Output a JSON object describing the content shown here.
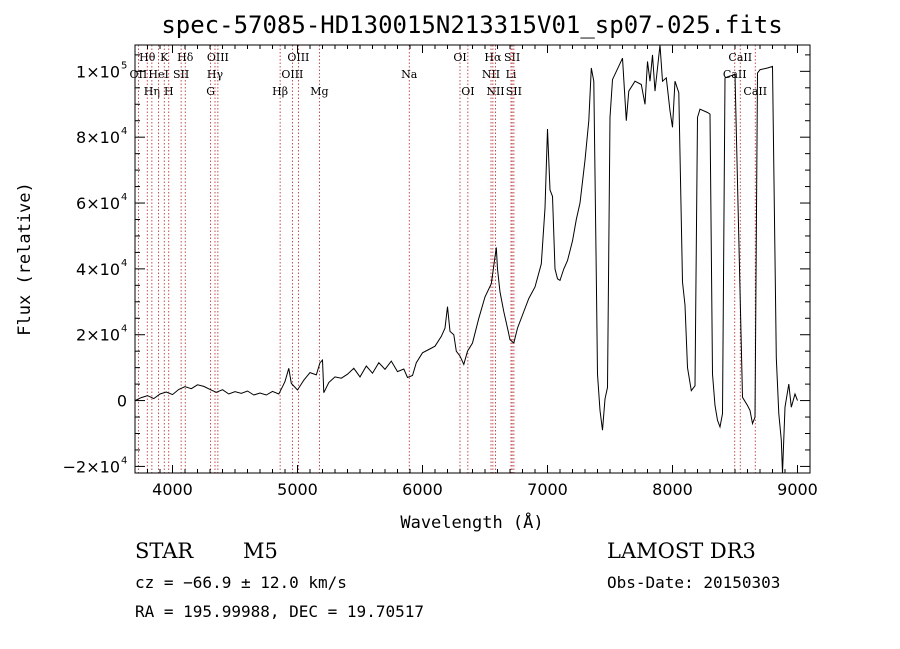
{
  "chart_data": {
    "type": "line",
    "title": "spec-57085-HD130015N213315V01_sp07-025.fits",
    "xlabel": "Wavelength (Å)",
    "ylabel": "Flux (relative)",
    "xlim": [
      3700,
      9100
    ],
    "ylim": [
      -22000,
      108000
    ],
    "x_ticks": [
      4000,
      5000,
      6000,
      7000,
      8000,
      9000
    ],
    "y_ticks": [
      {
        "value": -20000,
        "mantissa": "−2×10",
        "exp": "4"
      },
      {
        "value": 0,
        "mantissa": "0",
        "exp": ""
      },
      {
        "value": 20000,
        "mantissa": "2×10",
        "exp": "4"
      },
      {
        "value": 40000,
        "mantissa": "4×10",
        "exp": "4"
      },
      {
        "value": 60000,
        "mantissa": "6×10",
        "exp": "4"
      },
      {
        "value": 80000,
        "mantissa": "8×10",
        "exp": "4"
      },
      {
        "value": 100000,
        "mantissa": "1×10",
        "exp": "5"
      }
    ],
    "series": [
      {
        "points": [
          [
            3700,
            0
          ],
          [
            3750,
            900
          ],
          [
            3800,
            1500
          ],
          [
            3850,
            600
          ],
          [
            3900,
            2000
          ],
          [
            3950,
            2600
          ],
          [
            4000,
            1800
          ],
          [
            4050,
            3400
          ],
          [
            4100,
            4200
          ],
          [
            4150,
            3600
          ],
          [
            4200,
            4800
          ],
          [
            4250,
            4300
          ],
          [
            4300,
            3400
          ],
          [
            4350,
            2500
          ],
          [
            4400,
            3300
          ],
          [
            4450,
            2000
          ],
          [
            4500,
            2700
          ],
          [
            4550,
            2200
          ],
          [
            4600,
            2900
          ],
          [
            4650,
            1700
          ],
          [
            4700,
            2300
          ],
          [
            4750,
            1700
          ],
          [
            4800,
            2800
          ],
          [
            4850,
            2000
          ],
          [
            4880,
            4200
          ],
          [
            4900,
            5800
          ],
          [
            4930,
            9800
          ],
          [
            4950,
            5200
          ],
          [
            5000,
            3200
          ],
          [
            5050,
            6200
          ],
          [
            5100,
            8500
          ],
          [
            5150,
            7800
          ],
          [
            5180,
            11500
          ],
          [
            5200,
            12300
          ],
          [
            5210,
            2400
          ],
          [
            5250,
            5500
          ],
          [
            5300,
            7200
          ],
          [
            5350,
            6800
          ],
          [
            5400,
            8000
          ],
          [
            5450,
            9800
          ],
          [
            5500,
            7200
          ],
          [
            5550,
            10500
          ],
          [
            5600,
            8300
          ],
          [
            5650,
            11500
          ],
          [
            5700,
            9500
          ],
          [
            5750,
            12000
          ],
          [
            5800,
            8800
          ],
          [
            5850,
            9600
          ],
          [
            5880,
            7000
          ],
          [
            5920,
            7600
          ],
          [
            5950,
            11500
          ],
          [
            6000,
            14500
          ],
          [
            6050,
            15500
          ],
          [
            6100,
            16500
          ],
          [
            6150,
            19500
          ],
          [
            6180,
            22000
          ],
          [
            6200,
            28500
          ],
          [
            6220,
            21000
          ],
          [
            6250,
            20000
          ],
          [
            6270,
            15000
          ],
          [
            6300,
            13500
          ],
          [
            6330,
            11000
          ],
          [
            6360,
            15000
          ],
          [
            6400,
            17500
          ],
          [
            6450,
            25000
          ],
          [
            6500,
            31500
          ],
          [
            6550,
            35500
          ],
          [
            6570,
            41000
          ],
          [
            6590,
            46500
          ],
          [
            6600,
            40000
          ],
          [
            6620,
            33000
          ],
          [
            6650,
            27000
          ],
          [
            6680,
            22000
          ],
          [
            6700,
            18500
          ],
          [
            6730,
            17500
          ],
          [
            6760,
            22000
          ],
          [
            6800,
            26000
          ],
          [
            6850,
            31000
          ],
          [
            6900,
            34500
          ],
          [
            6950,
            41500
          ],
          [
            6980,
            58500
          ],
          [
            7000,
            82500
          ],
          [
            7020,
            64000
          ],
          [
            7040,
            62000
          ],
          [
            7060,
            40000
          ],
          [
            7080,
            37000
          ],
          [
            7100,
            36500
          ],
          [
            7130,
            40000
          ],
          [
            7160,
            42500
          ],
          [
            7200,
            48500
          ],
          [
            7230,
            55000
          ],
          [
            7260,
            60000
          ],
          [
            7300,
            73000
          ],
          [
            7330,
            85000
          ],
          [
            7350,
            101000
          ],
          [
            7370,
            97000
          ],
          [
            7390,
            38000
          ],
          [
            7400,
            8000
          ],
          [
            7420,
            -3000
          ],
          [
            7440,
            -9000
          ],
          [
            7460,
            500
          ],
          [
            7480,
            4000
          ],
          [
            7500,
            86000
          ],
          [
            7520,
            97500
          ],
          [
            7600,
            104000
          ],
          [
            7630,
            85000
          ],
          [
            7650,
            94000
          ],
          [
            7700,
            97000
          ],
          [
            7750,
            96000
          ],
          [
            7780,
            90000
          ],
          [
            7800,
            103000
          ],
          [
            7820,
            97000
          ],
          [
            7840,
            105000
          ],
          [
            7860,
            94000
          ],
          [
            7880,
            101000
          ],
          [
            7900,
            108000
          ],
          [
            7920,
            97000
          ],
          [
            7950,
            98000
          ],
          [
            7980,
            88000
          ],
          [
            8000,
            83000
          ],
          [
            8020,
            97000
          ],
          [
            8050,
            93500
          ],
          [
            8080,
            36000
          ],
          [
            8100,
            29000
          ],
          [
            8120,
            10000
          ],
          [
            8150,
            3000
          ],
          [
            8180,
            4500
          ],
          [
            8200,
            86000
          ],
          [
            8220,
            88500
          ],
          [
            8280,
            87500
          ],
          [
            8300,
            87000
          ],
          [
            8320,
            8000
          ],
          [
            8340,
            -1500
          ],
          [
            8360,
            -6000
          ],
          [
            8380,
            -8000
          ],
          [
            8400,
            -4000
          ],
          [
            8420,
            98000
          ],
          [
            8450,
            98500
          ],
          [
            8500,
            99000
          ],
          [
            8560,
            1000
          ],
          [
            8600,
            -1500
          ],
          [
            8620,
            -3000
          ],
          [
            8640,
            -7000
          ],
          [
            8660,
            -5000
          ],
          [
            8680,
            99500
          ],
          [
            8700,
            100500
          ],
          [
            8760,
            101000
          ],
          [
            8800,
            101500
          ],
          [
            8830,
            13000
          ],
          [
            8850,
            -4000
          ],
          [
            8870,
            -12000
          ],
          [
            8880,
            -22000
          ],
          [
            8900,
            -2000
          ],
          [
            8930,
            5000
          ],
          [
            8950,
            -2000
          ],
          [
            8980,
            2000
          ],
          [
            9000,
            0
          ]
        ]
      }
    ],
    "line_markers": [
      {
        "label": "Hθ",
        "wl": 3798,
        "row": 1
      },
      {
        "label": "OII",
        "wl": 3727,
        "row": 2
      },
      {
        "label": "Hη",
        "wl": 3835,
        "row": 3
      },
      {
        "label": "K",
        "wl": 3934,
        "row": 1
      },
      {
        "label": "HeI",
        "wl": 3889,
        "row": 2
      },
      {
        "label": "H",
        "wl": 3970,
        "row": 3
      },
      {
        "label": "Hδ",
        "wl": 4102,
        "row": 1
      },
      {
        "label": "SII",
        "wl": 4069,
        "row": 2
      },
      {
        "label": "OIII",
        "wl": 4363,
        "row": 1
      },
      {
        "label": "Hγ",
        "wl": 4340,
        "row": 2
      },
      {
        "label": "G",
        "wl": 4305,
        "row": 3
      },
      {
        "label": "Hβ",
        "wl": 4861,
        "row": 3
      },
      {
        "label": "OIII",
        "wl": 5007,
        "row": 1
      },
      {
        "label": "OIII",
        "wl": 4959,
        "row": 2
      },
      {
        "label": "Mg",
        "wl": 5175,
        "row": 3
      },
      {
        "label": "Na",
        "wl": 5894,
        "row": 2
      },
      {
        "label": "OI",
        "wl": 6300,
        "row": 1
      },
      {
        "label": "OI",
        "wl": 6363,
        "row": 3
      },
      {
        "label": "Hα",
        "wl": 6563,
        "row": 1
      },
      {
        "label": "NII",
        "wl": 6548,
        "row": 2
      },
      {
        "label": "NII",
        "wl": 6584,
        "row": 3
      },
      {
        "label": "SII",
        "wl": 6717,
        "row": 1
      },
      {
        "label": "Li",
        "wl": 6708,
        "row": 2
      },
      {
        "label": "SII",
        "wl": 6731,
        "row": 3
      },
      {
        "label": "CaII",
        "wl": 8542,
        "row": 1
      },
      {
        "label": "CaII",
        "wl": 8498,
        "row": 2
      },
      {
        "label": "CaII",
        "wl": 8662,
        "row": 3
      }
    ]
  },
  "info": {
    "class": "STAR",
    "subclass": "M5",
    "survey": "LAMOST DR3",
    "cz": "cz = −66.9 ± 12.0 km/s",
    "obs_date": "Obs-Date: 20150303",
    "radec": "RA = 195.99988, DEC =  19.70517"
  }
}
